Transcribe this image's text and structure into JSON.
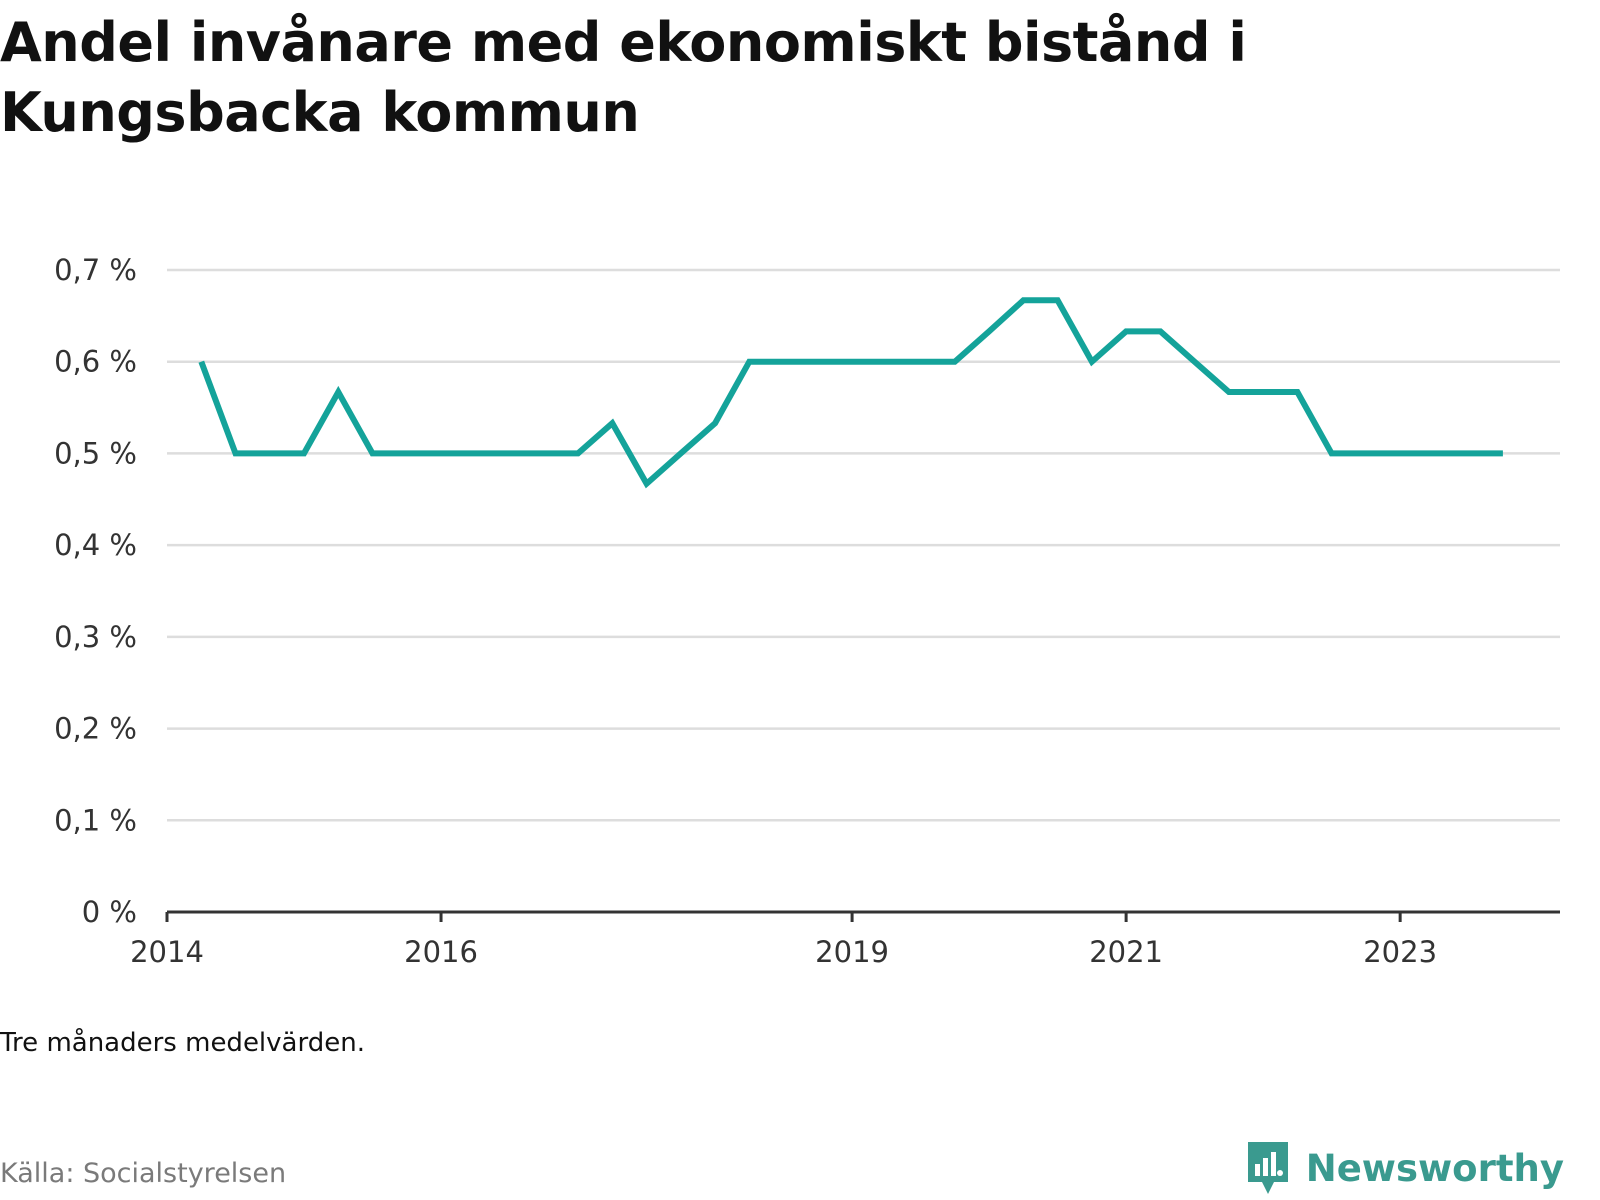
{
  "title": "Andel invånare med ekonomiskt bistånd i Kungsbacka kommun",
  "note": "Tre månaders medelvärden.",
  "source": "Källa: Socialstyrelsen",
  "brand": "Newsworthy",
  "colors": {
    "line": "#14a39a",
    "grid": "#dddddd",
    "axis": "#333333",
    "brand": "#3a9a8f"
  },
  "chart_data": {
    "type": "line",
    "title": "Andel invånare med ekonomiskt bistånd i Kungsbacka kommun",
    "xlabel": "",
    "ylabel": "",
    "ylim": [
      0,
      0.7
    ],
    "xlim": [
      "2014-01",
      "2024-03"
    ],
    "yticks": [
      0,
      0.1,
      0.2,
      0.3,
      0.4,
      0.5,
      0.6,
      0.7
    ],
    "ytick_labels": [
      "0 %",
      "0,1 %",
      "0,2 %",
      "0,3 %",
      "0,4 %",
      "0,5 %",
      "0,6 %",
      "0,7 %"
    ],
    "xticks": [
      "2014-01",
      "2016-01",
      "2019-01",
      "2021-01",
      "2023-01"
    ],
    "xtick_labels": [
      "2014",
      "2016",
      "2019",
      "2021",
      "2023"
    ],
    "grid": true,
    "legend": "none",
    "series": [
      {
        "x": [
          "2014-04",
          "2014-07",
          "2014-10",
          "2015-01",
          "2015-04",
          "2015-07",
          "2015-10",
          "2016-01",
          "2016-04",
          "2016-07",
          "2016-10",
          "2017-01",
          "2017-04",
          "2017-07",
          "2017-10",
          "2018-01",
          "2018-04",
          "2018-07",
          "2018-10",
          "2019-01",
          "2019-04",
          "2019-07",
          "2019-10",
          "2020-01",
          "2020-04",
          "2020-07",
          "2020-10",
          "2021-01",
          "2021-04",
          "2021-07",
          "2021-10",
          "2022-01",
          "2022-04",
          "2022-07",
          "2022-10",
          "2023-01",
          "2023-04",
          "2023-07",
          "2023-10"
        ],
        "values": [
          0.6,
          0.5,
          0.5,
          0.5,
          0.567,
          0.5,
          0.5,
          0.5,
          0.5,
          0.5,
          0.5,
          0.5,
          0.533,
          0.467,
          0.5,
          0.533,
          0.6,
          0.6,
          0.6,
          0.6,
          0.6,
          0.6,
          0.6,
          0.633,
          0.667,
          0.667,
          0.6,
          0.633,
          0.633,
          0.6,
          0.567,
          0.567,
          0.567,
          0.5,
          0.5,
          0.5,
          0.5,
          0.5,
          0.5
        ]
      }
    ]
  }
}
